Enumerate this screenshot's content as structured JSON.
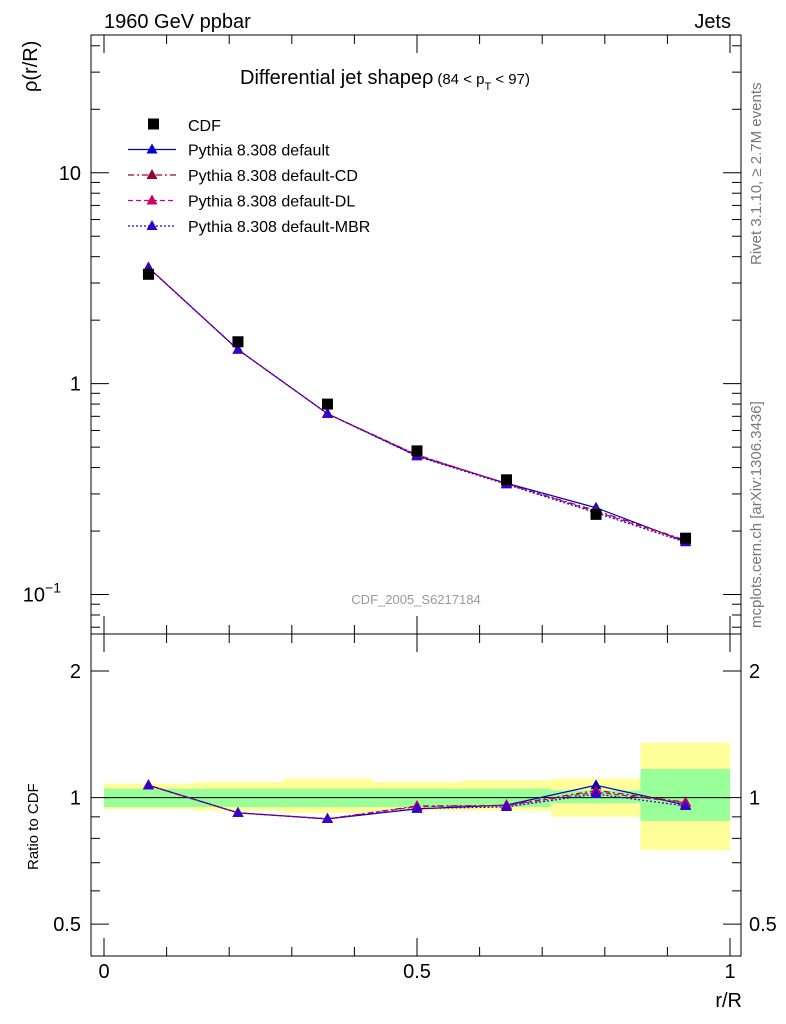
{
  "header": {
    "left": "1960 GeV ppbar",
    "right": "Jets"
  },
  "side": {
    "rivet": "Rivet 3.1.10, ≥ 2.7M events",
    "mcplots": "mcplots.cern.ch [arXiv:1306.3436]"
  },
  "chart_data": [
    {
      "type": "scatter",
      "panel": "main",
      "title": "Differential jet shapeρ",
      "title_range": {
        "pre": "(84 < p",
        "sub": "T",
        "post": " < 97)"
      },
      "ylabel": "ρ(r/R)",
      "watermark": "CDF_2005_S6217184",
      "yscale": "log",
      "xlim": [
        0,
        1
      ],
      "ylim": [
        0.065,
        45
      ],
      "y_tick_labels": [
        {
          "v": 10,
          "label": "10"
        },
        {
          "v": 1,
          "label": "1"
        },
        {
          "v": 0.1,
          "label": "10",
          "sup": "−1"
        }
      ],
      "x": [
        0.071,
        0.214,
        0.357,
        0.5,
        0.643,
        0.786,
        0.929
      ],
      "data": {
        "name": "CDF",
        "values": [
          3.3,
          1.58,
          0.8,
          0.48,
          0.35,
          0.24,
          0.185
        ]
      },
      "series": [
        {
          "name": "Pythia 8.308 default",
          "color": "#0000cc",
          "dash": "solid",
          "values": [
            3.55,
            1.45,
            0.72,
            0.455,
            0.337,
            0.258,
            0.178
          ]
        },
        {
          "name": "Pythia 8.308 default-CD",
          "color": "#990033",
          "dash": "dashdot",
          "values": [
            3.55,
            1.45,
            0.72,
            0.46,
            0.335,
            0.25,
            0.181
          ]
        },
        {
          "name": "Pythia 8.308 default-DL",
          "color": "#cc0066",
          "dash": "dashed",
          "values": [
            3.55,
            1.45,
            0.72,
            0.458,
            0.336,
            0.247,
            0.18
          ]
        },
        {
          "name": "Pythia 8.308 default-MBR",
          "color": "#3300cc",
          "dash": "dotted",
          "values": [
            3.55,
            1.45,
            0.72,
            0.452,
            0.333,
            0.244,
            0.177
          ]
        }
      ]
    },
    {
      "type": "scatter",
      "panel": "ratio",
      "ylabel": "Ratio to CDF",
      "xlabel": "r/R",
      "yscale": "log",
      "xlim": [
        0,
        1
      ],
      "ylim": [
        0.42,
        2.45
      ],
      "y_tick_labels": [
        {
          "v": 2,
          "label": "2"
        },
        {
          "v": 1,
          "label": "1"
        },
        {
          "v": 0.5,
          "label": "0.5"
        }
      ],
      "x_tick_labels": [
        {
          "v": 0,
          "label": "0"
        },
        {
          "v": 0.5,
          "label": "0.5"
        },
        {
          "v": 1,
          "label": "1"
        }
      ],
      "x": [
        0.071,
        0.214,
        0.357,
        0.5,
        0.643,
        0.786,
        0.929
      ],
      "bin_edges": [
        0,
        0.143,
        0.286,
        0.429,
        0.571,
        0.714,
        0.857,
        1.0
      ],
      "band_stat": [
        [
          0.95,
          1.05
        ],
        [
          0.95,
          1.05
        ],
        [
          0.95,
          1.05
        ],
        [
          0.95,
          1.05
        ],
        [
          0.95,
          1.05
        ],
        [
          0.97,
          1.04
        ],
        [
          0.88,
          1.17
        ]
      ],
      "band_total": [
        [
          0.94,
          1.08
        ],
        [
          0.93,
          1.09
        ],
        [
          0.92,
          1.11
        ],
        [
          0.93,
          1.09
        ],
        [
          0.93,
          1.1
        ],
        [
          0.9,
          1.11
        ],
        [
          0.75,
          1.35
        ]
      ],
      "series": [
        {
          "name": "Pythia 8.308 default",
          "color": "#0000cc",
          "dash": "solid",
          "values": [
            1.07,
            0.92,
            0.89,
            0.94,
            0.96,
            1.07,
            0.96
          ]
        },
        {
          "name": "Pythia 8.308 default-CD",
          "color": "#990033",
          "dash": "dashdot",
          "values": [
            1.07,
            0.92,
            0.89,
            0.955,
            0.958,
            1.04,
            0.975
          ]
        },
        {
          "name": "Pythia 8.308 default-DL",
          "color": "#cc0066",
          "dash": "dashed",
          "values": [
            1.07,
            0.92,
            0.89,
            0.952,
            0.957,
            1.03,
            0.972
          ]
        },
        {
          "name": "Pythia 8.308 default-MBR",
          "color": "#3300cc",
          "dash": "dotted",
          "values": [
            1.07,
            0.92,
            0.89,
            0.942,
            0.95,
            1.02,
            0.955
          ]
        }
      ]
    }
  ]
}
